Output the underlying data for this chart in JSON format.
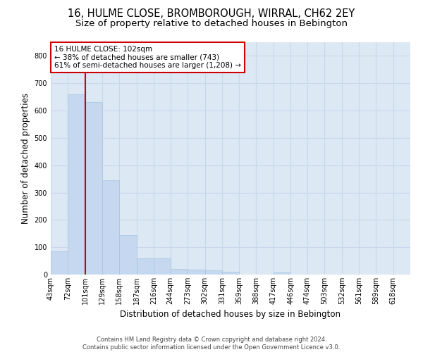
{
  "title": "16, HULME CLOSE, BROMBOROUGH, WIRRAL, CH62 2EY",
  "subtitle": "Size of property relative to detached houses in Bebington",
  "xlabel": "Distribution of detached houses by size in Bebington",
  "ylabel": "Number of detached properties",
  "footnote1": "Contains HM Land Registry data © Crown copyright and database right 2024.",
  "footnote2": "Contains public sector information licensed under the Open Government Licence v3.0.",
  "annotation_line1": "16 HULME CLOSE: 102sqm",
  "annotation_line2": "← 38% of detached houses are smaller (743)",
  "annotation_line3": "61% of semi-detached houses are larger (1,208) →",
  "bar_color": "#c5d8f0",
  "bar_edge_color": "#a8c4e0",
  "grid_color": "#c8d8ea",
  "bg_color": "#dce8f4",
  "vline_color": "#cc0000",
  "annotation_box_color": "#cc0000",
  "categories": [
    "43sqm",
    "72sqm",
    "101sqm",
    "129sqm",
    "158sqm",
    "187sqm",
    "216sqm",
    "244sqm",
    "273sqm",
    "302sqm",
    "331sqm",
    "359sqm",
    "388sqm",
    "417sqm",
    "446sqm",
    "474sqm",
    "503sqm",
    "532sqm",
    "561sqm",
    "589sqm",
    "618sqm"
  ],
  "bin_edges": [
    43,
    72,
    101,
    129,
    158,
    187,
    216,
    244,
    273,
    302,
    331,
    359,
    388,
    417,
    446,
    474,
    503,
    532,
    561,
    589,
    618,
    647
  ],
  "values": [
    85,
    660,
    630,
    345,
    145,
    60,
    60,
    20,
    18,
    15,
    10,
    0,
    0,
    8,
    0,
    0,
    0,
    0,
    0,
    0,
    0
  ],
  "ylim": [
    0,
    850
  ],
  "yticks": [
    0,
    100,
    200,
    300,
    400,
    500,
    600,
    700,
    800
  ],
  "title_fontsize": 10.5,
  "subtitle_fontsize": 9.5,
  "tick_fontsize": 7,
  "ylabel_fontsize": 8.5,
  "xlabel_fontsize": 8.5,
  "annotation_fontsize": 7.5,
  "footnote_fontsize": 6
}
